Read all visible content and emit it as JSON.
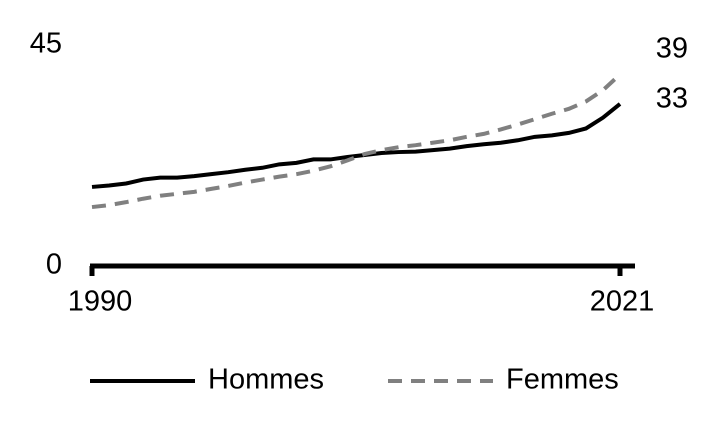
{
  "chart_data": {
    "type": "line",
    "x": [
      1990,
      1991,
      1992,
      1993,
      1994,
      1995,
      1996,
      1997,
      1998,
      1999,
      2000,
      2001,
      2002,
      2003,
      2004,
      2005,
      2006,
      2007,
      2008,
      2009,
      2010,
      2011,
      2012,
      2013,
      2014,
      2015,
      2016,
      2017,
      2018,
      2019,
      2020,
      2021
    ],
    "series": [
      {
        "name": "Hommes",
        "color": "#000000",
        "dash": false,
        "values": [
          16.1,
          16.4,
          16.8,
          17.6,
          18.0,
          18.0,
          18.3,
          18.7,
          19.1,
          19.6,
          20.0,
          20.7,
          21.0,
          21.7,
          21.7,
          22.2,
          22.6,
          23.0,
          23.2,
          23.3,
          23.6,
          23.9,
          24.4,
          24.8,
          25.1,
          25.6,
          26.3,
          26.6,
          27.1,
          28.0,
          30.2,
          33
        ]
      },
      {
        "name": "Femmes",
        "color": "#808080",
        "dash": true,
        "values": [
          12.0,
          12.4,
          13.0,
          13.7,
          14.3,
          14.7,
          15.1,
          15.7,
          16.3,
          17.0,
          17.6,
          18.2,
          18.7,
          19.4,
          20.3,
          21.5,
          22.8,
          23.6,
          24.2,
          24.6,
          25.1,
          25.6,
          26.3,
          26.9,
          27.8,
          28.8,
          29.9,
          31.0,
          32.0,
          33.5,
          35.8,
          39
        ]
      }
    ],
    "xlim": [
      1990,
      2021
    ],
    "xticks": [
      1990,
      2021
    ],
    "ylim": [
      0,
      45
    ],
    "yticks": [
      0,
      45
    ],
    "grid": false,
    "legend": "bottom"
  }
}
